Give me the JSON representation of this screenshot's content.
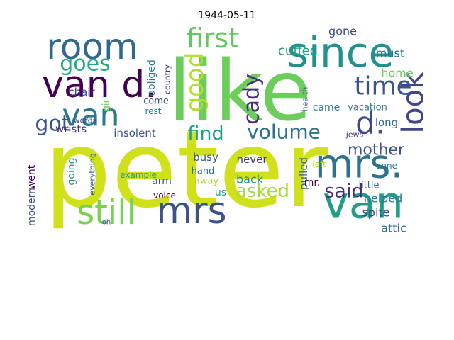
{
  "title": "1944-05-11",
  "words": [
    "peter",
    "like",
    "van d.",
    "room",
    "since",
    "van",
    "mrs.",
    "mrs",
    "still",
    "van",
    "d.",
    "first",
    "look",
    "time",
    "good",
    "goes",
    "got",
    "volume",
    "find",
    "cady",
    "said",
    "asked",
    "mother",
    "cuffed",
    "gone",
    "must",
    "home",
    "chair",
    "wrists",
    "insolent",
    "went",
    "modern",
    "going",
    "busy",
    "hand",
    "away",
    "back",
    "pulled",
    "never",
    "helped",
    "spite",
    "attic",
    "little",
    "anne",
    "left",
    "mr.",
    "arm",
    "voice",
    "example",
    "us",
    "come",
    "rest",
    "obliged",
    "girl",
    "country",
    "words",
    "came",
    "vacation",
    "long",
    "everything",
    "oh",
    "health",
    "jews"
  ]
}
